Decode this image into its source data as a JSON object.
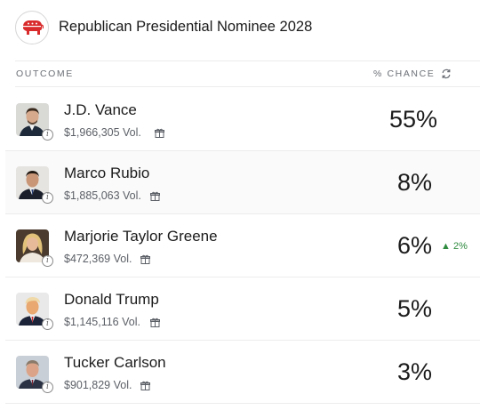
{
  "header": {
    "title": "Republican Presidential Nominee 2028",
    "logo_icon": "gop-elephant-icon",
    "logo_color": "#d92b2b"
  },
  "columns": {
    "outcome": "OUTCOME",
    "chance": "% CHANCE",
    "refresh_icon": "refresh-icon"
  },
  "rows": [
    {
      "name": "J.D. Vance",
      "volume": "$1,966,305 Vol.",
      "chance": "55%",
      "delta": ""
    },
    {
      "name": "Marco Rubio",
      "volume": "$1,885,063 Vol.",
      "chance": "8%",
      "delta": ""
    },
    {
      "name": "Marjorie Taylor Greene",
      "volume": "$472,369 Vol.",
      "chance": "6%",
      "delta": "2%"
    },
    {
      "name": "Donald Trump",
      "volume": "$1,145,116 Vol.",
      "chance": "5%",
      "delta": ""
    },
    {
      "name": "Tucker Carlson",
      "volume": "$901,829 Vol.",
      "chance": "3%",
      "delta": ""
    }
  ],
  "colors": {
    "delta_up": "#2e8b3f",
    "muted_text": "#6b6f76"
  }
}
